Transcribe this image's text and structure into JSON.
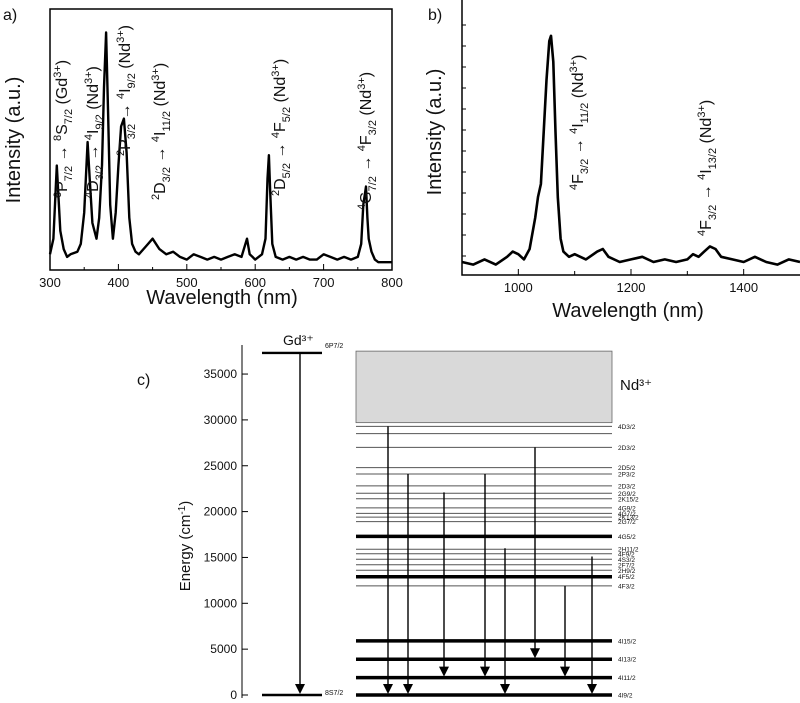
{
  "chart_data": [
    {
      "panel": "a)",
      "type": "line",
      "xlabel": "Wavelength (nm)",
      "ylabel": "Intensity (a.u.)",
      "xlim": [
        300,
        800
      ],
      "ylim": [
        0,
        100
      ],
      "xticks": [
        300,
        400,
        500,
        600,
        700,
        800
      ],
      "y_tick_labels_shown": false,
      "x": [
        300,
        305,
        310,
        315,
        320,
        325,
        330,
        340,
        345,
        350,
        355,
        358,
        362,
        368,
        372,
        376,
        379,
        382,
        385,
        388,
        392,
        396,
        400,
        404,
        408,
        412,
        416,
        420,
        425,
        430,
        440,
        450,
        460,
        470,
        480,
        490,
        500,
        510,
        520,
        530,
        540,
        550,
        560,
        570,
        580,
        588,
        592,
        596,
        600,
        605,
        610,
        615,
        618,
        620,
        622,
        625,
        630,
        640,
        650,
        660,
        670,
        680,
        690,
        700,
        710,
        720,
        730,
        740,
        750,
        755,
        758,
        762,
        764,
        766,
        770,
        775,
        780,
        790,
        800
      ],
      "y": [
        6,
        12,
        40,
        15,
        8,
        5,
        6,
        7,
        10,
        22,
        49,
        35,
        18,
        12,
        20,
        40,
        70,
        91,
        60,
        25,
        12,
        22,
        40,
        55,
        58,
        45,
        20,
        10,
        7,
        6,
        9,
        12,
        8,
        6,
        7,
        5,
        4,
        6,
        5,
        4,
        5,
        4,
        5,
        6,
        5,
        12,
        6,
        5,
        4,
        5,
        6,
        12,
        35,
        44,
        30,
        10,
        5,
        4,
        5,
        4,
        5,
        4,
        4,
        6,
        5,
        4,
        5,
        4,
        5,
        10,
        25,
        32,
        20,
        12,
        7,
        4,
        3,
        3,
        3
      ],
      "annotations": [
        {
          "label": "⁶P₇/₂ → ⁸S₇/₂ (Gd³⁺)",
          "x_nm": 311
        },
        {
          "label": "⁴D₃/₂ → ⁴I₉/₂ (Nd³⁺)",
          "x_nm": 358
        },
        {
          "label": "²P₃/₂ → ⁴I₉/₂ (Nd³⁺)",
          "x_nm": 410
        },
        {
          "label": "²D₃/₂ → ⁴I₁₁/₂ (Nd³⁺)",
          "x_nm": 440
        },
        {
          "label": "²D₅/₂ → ⁴F₅/₂ (Nd³⁺)",
          "x_nm": 620
        },
        {
          "label": "⁴G₇/₂ → ⁴F₃/₂ (Nd³⁺)",
          "x_nm": 763
        }
      ]
    },
    {
      "panel": "b)",
      "type": "line",
      "xlabel": "Wavelength (nm)",
      "ylabel": "Intensity (a.u.)",
      "xlim": [
        900,
        1500
      ],
      "ylim": [
        0,
        100
      ],
      "xticks": [
        1000,
        1200,
        1400
      ],
      "y_tick_labels_shown": false,
      "x": [
        900,
        920,
        940,
        960,
        980,
        990,
        1000,
        1010,
        1020,
        1030,
        1035,
        1040,
        1045,
        1050,
        1055,
        1058,
        1062,
        1066,
        1070,
        1075,
        1080,
        1090,
        1100,
        1120,
        1140,
        1150,
        1160,
        1180,
        1200,
        1220,
        1240,
        1260,
        1280,
        1300,
        1310,
        1320,
        1330,
        1340,
        1350,
        1360,
        1380,
        1400,
        1420,
        1440,
        1460,
        1480,
        1500
      ],
      "y": [
        5,
        4,
        6,
        4,
        7,
        9,
        8,
        6,
        10,
        22,
        30,
        35,
        55,
        75,
        90,
        92,
        82,
        55,
        30,
        14,
        9,
        7,
        8,
        6,
        9,
        10,
        7,
        5,
        6,
        7,
        5,
        6,
        5,
        6,
        8,
        7,
        9,
        11,
        10,
        7,
        6,
        5,
        7,
        5,
        4,
        6,
        5
      ],
      "annotations": [
        {
          "label": "⁴F₃/₂ → ⁴I₁₁/₂ (Nd³⁺)",
          "x_nm": 1085
        },
        {
          "label": "⁴F₃/₂ → ⁴I₁₃/₂ (Nd³⁺)",
          "x_nm": 1335
        }
      ]
    },
    {
      "panel": "c)",
      "type": "energy-level-diagram",
      "ylabel": "Energy (cm⁻¹)",
      "ylim": [
        0,
        37500
      ],
      "yticks": [
        0,
        5000,
        10000,
        15000,
        20000,
        25000,
        30000,
        35000
      ],
      "ion_labels": {
        "gd": "Gd³⁺",
        "nd": "Nd³⁺"
      },
      "nd_band_range": [
        29700,
        37500
      ],
      "gd_levels": [
        {
          "name": "6P7/2",
          "energy": 37300
        },
        {
          "name": "8S7/2",
          "energy": 0
        }
      ],
      "nd_levels": [
        {
          "name": "4D3/2",
          "energy": 29300,
          "thick": false
        },
        {
          "name": "",
          "energy": 28500,
          "thick": false
        },
        {
          "name": "2D3/2",
          "energy": 27000,
          "thick": false
        },
        {
          "name": "2D5/2",
          "energy": 24800,
          "thick": false
        },
        {
          "name": "2P3/2",
          "energy": 24100,
          "thick": false
        },
        {
          "name": "2D3/2",
          "energy": 22800,
          "thick": false
        },
        {
          "name": "2G9/2",
          "energy": 22000,
          "thick": false
        },
        {
          "name": "2K15/2",
          "energy": 21400,
          "thick": false
        },
        {
          "name": "4G9/2",
          "energy": 20400,
          "thick": false
        },
        {
          "name": "4G7/2",
          "energy": 19800,
          "thick": false
        },
        {
          "name": "2K13/2",
          "energy": 19400,
          "thick": false
        },
        {
          "name": "2G7/2",
          "energy": 18900,
          "thick": false
        },
        {
          "name": "4G5/2",
          "energy": 17300,
          "thick": true
        },
        {
          "name": "2H11/2",
          "energy": 15900,
          "thick": false
        },
        {
          "name": "4F9/2",
          "energy": 15400,
          "thick": false
        },
        {
          "name": "4S3/2",
          "energy": 14800,
          "thick": false
        },
        {
          "name": "2F7/2",
          "energy": 14200,
          "thick": false
        },
        {
          "name": "2H9/2",
          "energy": 13600,
          "thick": false
        },
        {
          "name": "4F5/2",
          "energy": 12900,
          "thick": true
        },
        {
          "name": "4F3/2",
          "energy": 11900,
          "thick": false
        },
        {
          "name": "4I15/2",
          "energy": 5900,
          "thick": true
        },
        {
          "name": "4I13/2",
          "energy": 3900,
          "thick": true
        },
        {
          "name": "4I11/2",
          "energy": 1900,
          "thick": true
        },
        {
          "name": "4I9/2",
          "energy": 0,
          "thick": true
        }
      ],
      "gd_transition": {
        "from": 37300,
        "to": 0
      },
      "nd_transitions": [
        {
          "from": 29300,
          "to": 0
        },
        {
          "from": 24100,
          "to": 0
        },
        {
          "from": 22100,
          "to": 1900
        },
        {
          "from": 24100,
          "to": 1900
        },
        {
          "from": 16000,
          "to": 0
        },
        {
          "from": 27000,
          "to": 3900
        },
        {
          "from": 11900,
          "to": 1900
        },
        {
          "from": 15100,
          "to": 0
        }
      ]
    }
  ]
}
